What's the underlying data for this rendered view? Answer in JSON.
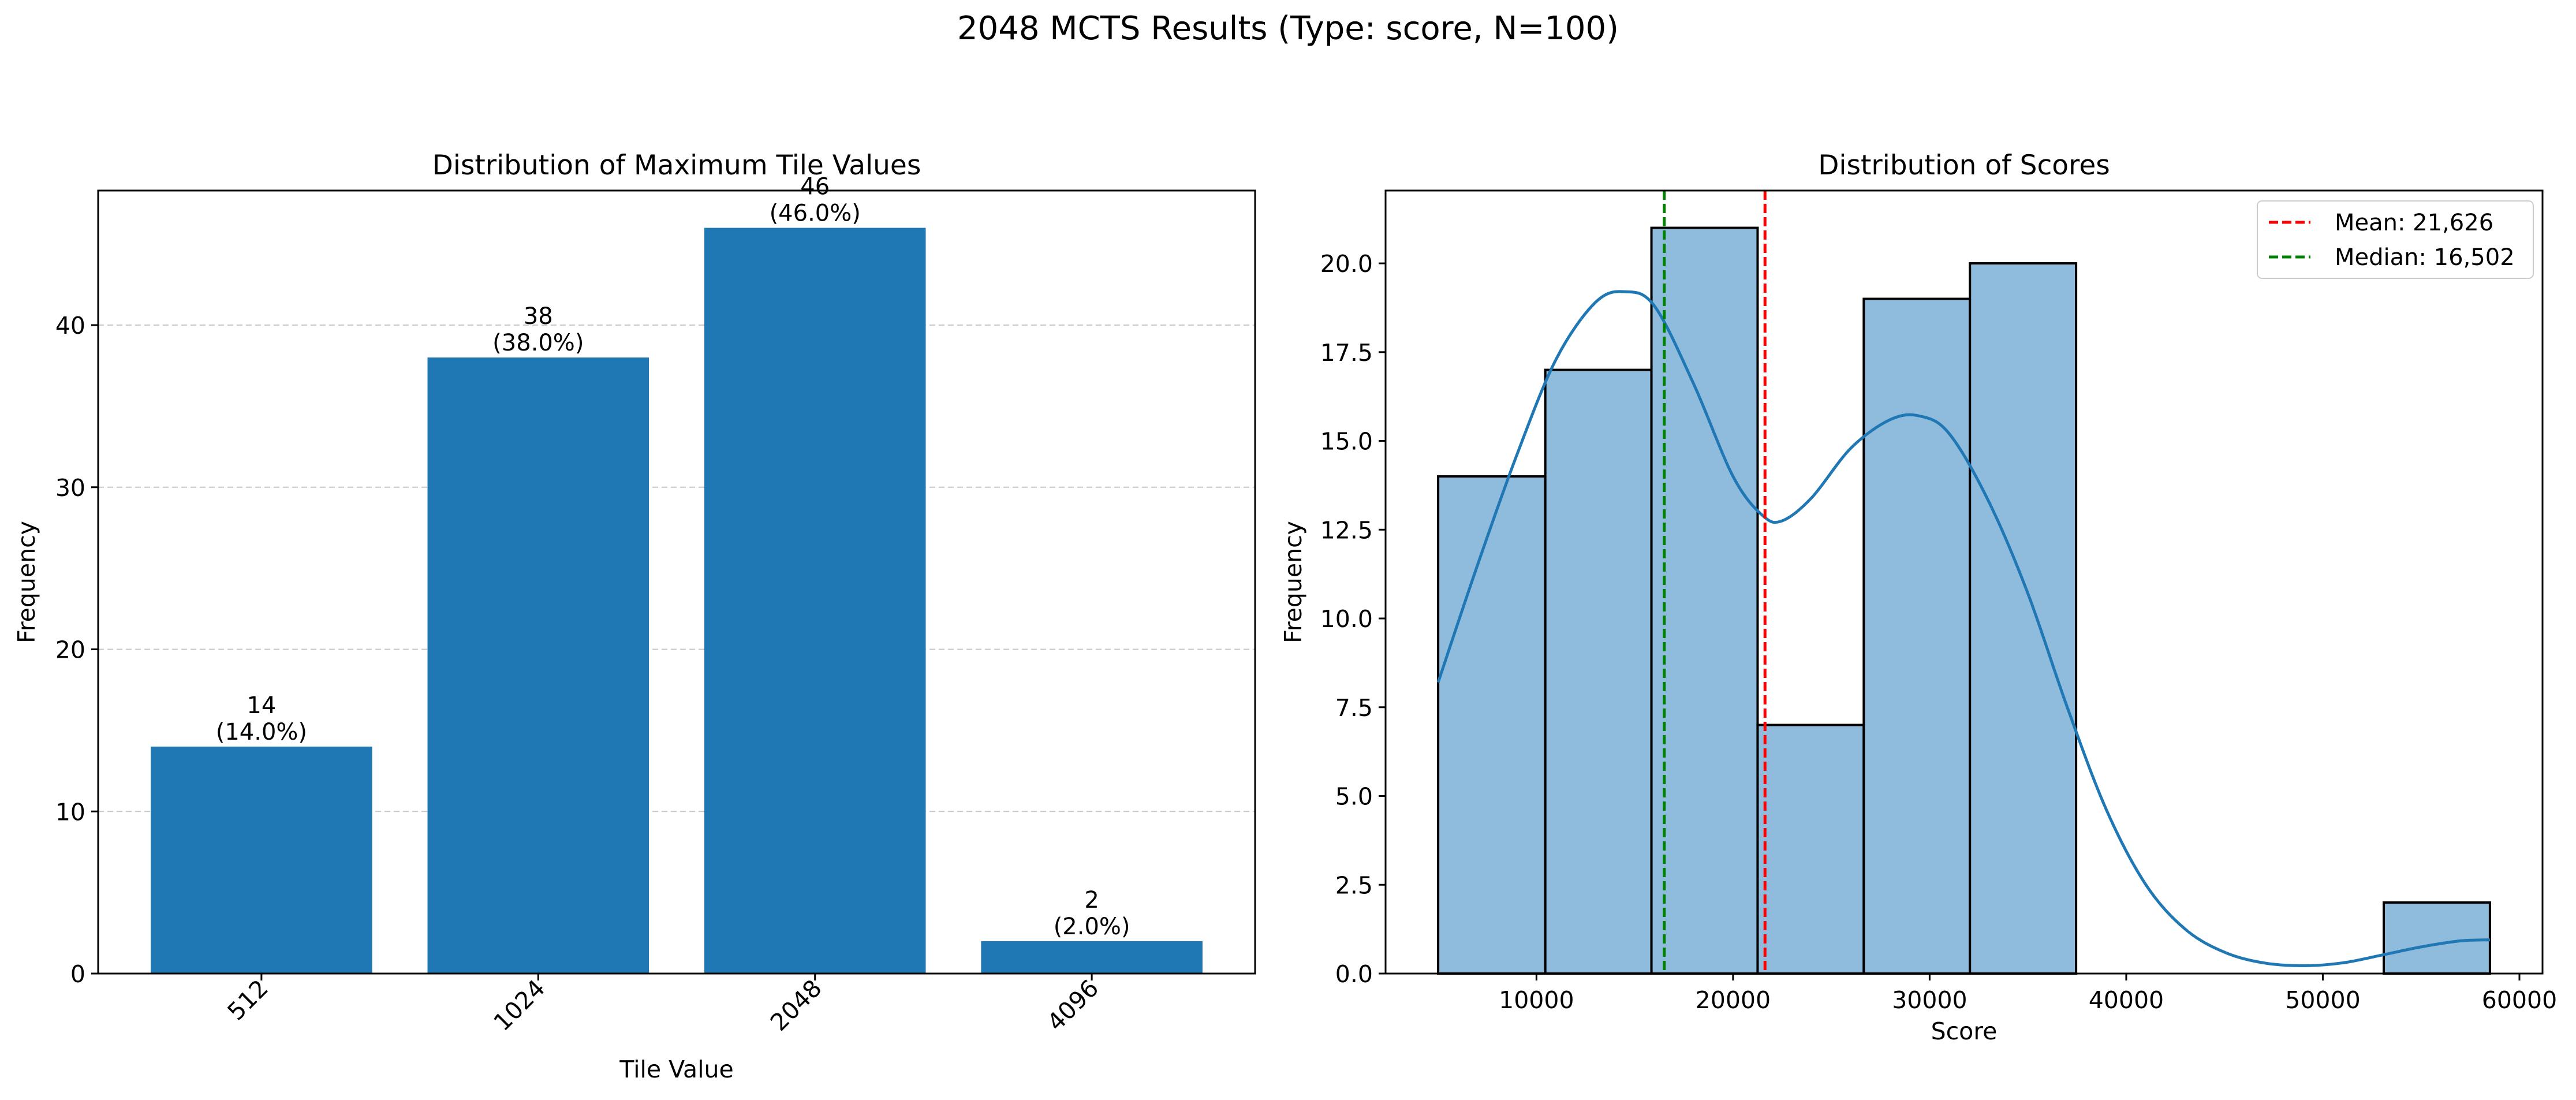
{
  "figure": {
    "suptitle": "2048 MCTS Results (Type: score, N=100)"
  },
  "chart_data": [
    {
      "type": "bar",
      "title": "Distribution of Maximum Tile Values",
      "xlabel": "Tile Value",
      "ylabel": "Frequency",
      "categories": [
        "512",
        "1024",
        "2048",
        "4096"
      ],
      "values": [
        14,
        38,
        46,
        2
      ],
      "bar_labels": [
        [
          "14",
          "(14.0%)"
        ],
        [
          "38",
          "(38.0%)"
        ],
        [
          "46",
          "(46.0%)"
        ],
        [
          "2",
          "(2.0%)"
        ]
      ],
      "ylim": [
        0,
        48.3
      ],
      "yticks": [
        0,
        10,
        20,
        30,
        40
      ],
      "grid": "y, dashed",
      "bar_color": "#1f77b4",
      "xtick_rotation": 45
    },
    {
      "type": "histogram",
      "title": "Distribution of Scores",
      "xlabel": "Score",
      "ylabel": "Frequency",
      "bins": [
        {
          "x0": 5000,
          "x1": 10450,
          "count": 14
        },
        {
          "x0": 10450,
          "x1": 15850,
          "count": 17
        },
        {
          "x0": 15850,
          "x1": 21250,
          "count": 21
        },
        {
          "x0": 21250,
          "x1": 26650,
          "count": 7
        },
        {
          "x0": 26650,
          "x1": 32050,
          "count": 19
        },
        {
          "x0": 32050,
          "x1": 37450,
          "count": 20
        },
        {
          "x0": 53100,
          "x1": 58500,
          "count": 2
        }
      ],
      "kde": {
        "x": [
          5000,
          7000,
          9000,
          11000,
          13000,
          14500,
          16000,
          18000,
          20000,
          21500,
          22500,
          24000,
          26000,
          28000,
          29500,
          31000,
          33000,
          35000,
          37000,
          39000,
          41000,
          43000,
          45000,
          47000,
          49000,
          51000,
          53000,
          55000,
          57000,
          58500
        ],
        "y": [
          8.2,
          11.5,
          14.6,
          17.3,
          18.9,
          19.2,
          18.8,
          16.6,
          14.0,
          12.9,
          12.75,
          13.4,
          14.8,
          15.6,
          15.7,
          15.2,
          13.3,
          10.7,
          7.5,
          4.6,
          2.5,
          1.25,
          0.6,
          0.3,
          0.22,
          0.3,
          0.52,
          0.75,
          0.92,
          0.95
        ]
      },
      "mean": 21626,
      "median": 16502,
      "legend": [
        "Mean: 21,626",
        "Median: 16,502"
      ],
      "legend_position": "upper right",
      "xlim": [
        2325,
        61175
      ],
      "ylim": [
        0,
        22.05
      ],
      "xticks": [
        10000,
        20000,
        30000,
        40000,
        50000,
        60000
      ],
      "yticks": [
        0.0,
        2.5,
        5.0,
        7.5,
        10.0,
        12.5,
        15.0,
        17.5,
        20.0
      ],
      "ytick_labels": [
        "0.0",
        "2.5",
        "5.0",
        "7.5",
        "10.0",
        "12.5",
        "15.0",
        "17.5",
        "20.0"
      ],
      "bar_color": "#8fbbdc",
      "kde_color": "#1f77b4",
      "mean_color": "#ff0000",
      "median_color": "#008000"
    }
  ]
}
